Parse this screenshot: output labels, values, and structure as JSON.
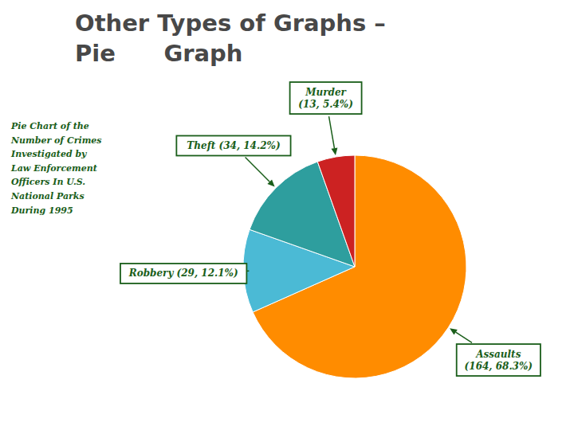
{
  "chart_data": {
    "type": "pie",
    "title": "Other Types of Graphs –\nPie      Graph",
    "subtitle": "Pie Chart of the\nNumber of Crimes\nInvestigated by\nLaw Enforcement\nOfficers In U.S.\nNational Parks\nDuring 1995",
    "values": [
      164,
      29,
      34,
      13
    ],
    "annotations": [
      "Assaults\n(164, 68.3%)",
      "Robbery (29, 12.1%)",
      "Theft (34, 14.2%)",
      "Murder\n(13, 5.4%)"
    ],
    "colors": [
      "#FF8C00",
      "#4BBAD5",
      "#2E9E9E",
      "#CC2222"
    ]
  }
}
